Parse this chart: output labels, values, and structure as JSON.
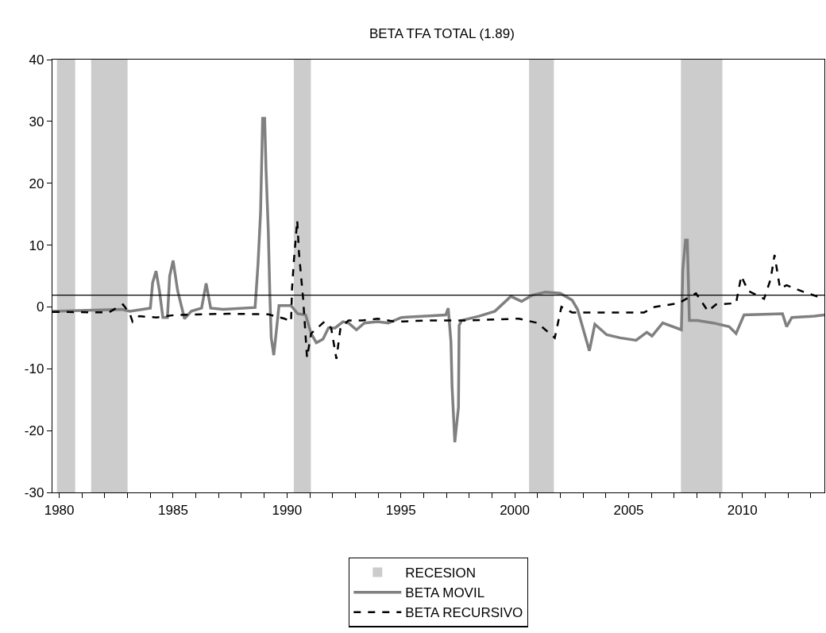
{
  "chart_data": {
    "type": "line",
    "title": "BETA TFA TOTAL (1.89)",
    "xlim": [
      1979.7,
      2013.6
    ],
    "ylim": [
      -30,
      40
    ],
    "xticks": [
      1980,
      {
        "value": 1981,
        "label": null
      },
      {
        "value": 1982,
        "label": null
      },
      {
        "value": 1983,
        "label": null
      },
      {
        "value": 1984,
        "label": null
      },
      1985,
      {
        "value": 1986,
        "label": null
      },
      {
        "value": 1987,
        "label": null
      },
      {
        "value": 1988,
        "label": null
      },
      {
        "value": 1989,
        "label": null
      },
      1990,
      {
        "value": 1991,
        "label": null
      },
      {
        "value": 1992,
        "label": null
      },
      {
        "value": 1993,
        "label": null
      },
      {
        "value": 1994,
        "label": null
      },
      1995,
      {
        "value": 1996,
        "label": null
      },
      {
        "value": 1997,
        "label": null
      },
      {
        "value": 1998,
        "label": null
      },
      {
        "value": 1999,
        "label": null
      },
      2000,
      {
        "value": 2001,
        "label": null
      },
      {
        "value": 2002,
        "label": null
      },
      {
        "value": 2003,
        "label": null
      },
      {
        "value": 2004,
        "label": null
      },
      2005,
      {
        "value": 2006,
        "label": null
      },
      {
        "value": 2007,
        "label": null
      },
      {
        "value": 2008,
        "label": null
      },
      {
        "value": 2009,
        "label": null
      },
      2010,
      {
        "value": 2011,
        "label": null
      },
      {
        "value": 2012,
        "label": null
      },
      {
        "value": 2013,
        "label": null
      }
    ],
    "yticks": [
      -30,
      -20,
      -10,
      0,
      10,
      20,
      30,
      40
    ],
    "grid": false,
    "legend": "bottom",
    "marker": "none",
    "bands": [
      {
        "axis": "x",
        "from": 1979.9,
        "to": 1980.7,
        "label": "RECESION",
        "color": "#cccccc"
      },
      {
        "axis": "x",
        "from": 1981.4,
        "to": 1983.0,
        "color": "#cccccc"
      },
      {
        "axis": "x",
        "from": 1990.3,
        "to": 1991.05,
        "color": "#cccccc"
      },
      {
        "axis": "x",
        "from": 2000.63,
        "to": 2001.72,
        "color": "#cccccc"
      },
      {
        "axis": "x",
        "from": 2007.3,
        "to": 2009.12,
        "color": "#cccccc"
      }
    ],
    "ref_lines": [
      {
        "axis": "y",
        "value": 1.89,
        "color": "#000000",
        "line_style": "solid"
      }
    ],
    "series": [
      {
        "name": "BETA MOVIL",
        "color": "#808080",
        "line_style": "solid",
        "x": [
          1979.7,
          1982.75,
          1983.1,
          1984.0,
          1984.1,
          1984.25,
          1984.4,
          1984.55,
          1984.75,
          1984.85,
          1985.0,
          1985.2,
          1985.5,
          1985.8,
          1986.25,
          1986.45,
          1986.65,
          1987.2,
          1988.6,
          1988.73,
          1988.84,
          1988.89,
          1988.93,
          1989.02,
          1989.08,
          1989.18,
          1989.25,
          1989.31,
          1989.42,
          1989.57,
          1989.65,
          1990.18,
          1990.47,
          1990.82,
          1991.06,
          1991.29,
          1991.58,
          1991.82,
          1992.11,
          1992.46,
          1992.7,
          1993.05,
          1993.4,
          1993.98,
          1994.45,
          1995.03,
          1996.09,
          1996.97,
          1997.08,
          1997.2,
          1997.25,
          1997.37,
          1997.53,
          1997.56,
          1997.67,
          1998.43,
          1999.13,
          1999.83,
          2000.3,
          2000.77,
          2001.35,
          2002.0,
          2002.52,
          2002.76,
          2003.28,
          2003.52,
          2004.04,
          2004.63,
          2005.33,
          2005.8,
          2006.03,
          2006.5,
          2007.32,
          2007.38,
          2007.5,
          2007.58,
          2007.67,
          2008.02,
          2008.72,
          2009.42,
          2009.72,
          2010.07,
          2011.76,
          2011.94,
          2012.17,
          2013.17,
          2013.6
        ],
        "values": [
          -0.7,
          -0.4,
          -0.7,
          -0.2,
          3.9,
          5.8,
          2.6,
          -1.7,
          -1.7,
          5.0,
          7.5,
          2.6,
          -1.9,
          -0.7,
          -0.2,
          3.8,
          -0.2,
          -0.4,
          -0.1,
          7.0,
          15.3,
          23.5,
          30.5,
          30.5,
          22.3,
          12.2,
          1.7,
          -5.0,
          -7.8,
          -2.6,
          0.2,
          0.2,
          -1.1,
          -1.3,
          -4.3,
          -5.8,
          -5.2,
          -3.4,
          -3.4,
          -2.4,
          -2.6,
          -3.7,
          -2.6,
          -2.4,
          -2.6,
          -1.7,
          -1.5,
          -1.3,
          -0.2,
          -5.6,
          -12.9,
          -21.9,
          -16.2,
          -3.0,
          -2.2,
          -1.5,
          -0.7,
          1.7,
          0.9,
          1.9,
          2.4,
          2.2,
          1.1,
          -0.4,
          -7.1,
          -2.8,
          -4.5,
          -5.0,
          -5.4,
          -4.1,
          -4.7,
          -2.6,
          -3.7,
          6.0,
          10.8,
          10.8,
          -2.2,
          -2.2,
          -2.6,
          -3.2,
          -4.3,
          -1.3,
          -1.1,
          -3.2,
          -1.7,
          -1.5,
          -1.3
        ]
      },
      {
        "name": "BETA RECURSIVO",
        "color": "#000000",
        "line_style": "dashed",
        "x": [
          1979.7,
          1982.17,
          1982.8,
          1983.1,
          1983.22,
          1983.51,
          1984.27,
          1985.1,
          1987.43,
          1989.18,
          1989.89,
          1990.18,
          1990.22,
          1990.3,
          1990.45,
          1990.53,
          1990.71,
          1990.88,
          1991.06,
          1991.64,
          1991.94,
          1992.17,
          1992.35,
          1992.7,
          1993.28,
          1993.98,
          1994.8,
          1996.09,
          1997.84,
          2000.18,
          2001.0,
          2001.76,
          2002.05,
          2002.52,
          2004.28,
          2005.68,
          2006.15,
          2007.2,
          2007.96,
          2008.49,
          2008.84,
          2009.72,
          2009.95,
          2010.25,
          2010.95,
          2011.24,
          2011.41,
          2011.65,
          2011.94,
          2012.7,
          2013.28,
          2013.6
        ],
        "values": [
          -0.8,
          -0.9,
          0.4,
          -1.1,
          -2.4,
          -1.5,
          -1.7,
          -1.3,
          -1.1,
          -1.2,
          -1.9,
          -2.4,
          2.8,
          7.3,
          14.0,
          8.6,
          1.3,
          -8.2,
          -4.3,
          -2.4,
          -3.4,
          -8.4,
          -3.4,
          -2.2,
          -2.2,
          -1.9,
          -2.4,
          -2.2,
          -2.2,
          -1.9,
          -2.6,
          -5.0,
          0.0,
          -0.9,
          -0.9,
          -0.9,
          0.0,
          0.6,
          2.2,
          -0.7,
          0.4,
          0.6,
          5.0,
          2.6,
          1.3,
          4.5,
          8.4,
          3.0,
          3.5,
          2.4,
          1.7,
          1.9
        ]
      }
    ]
  }
}
